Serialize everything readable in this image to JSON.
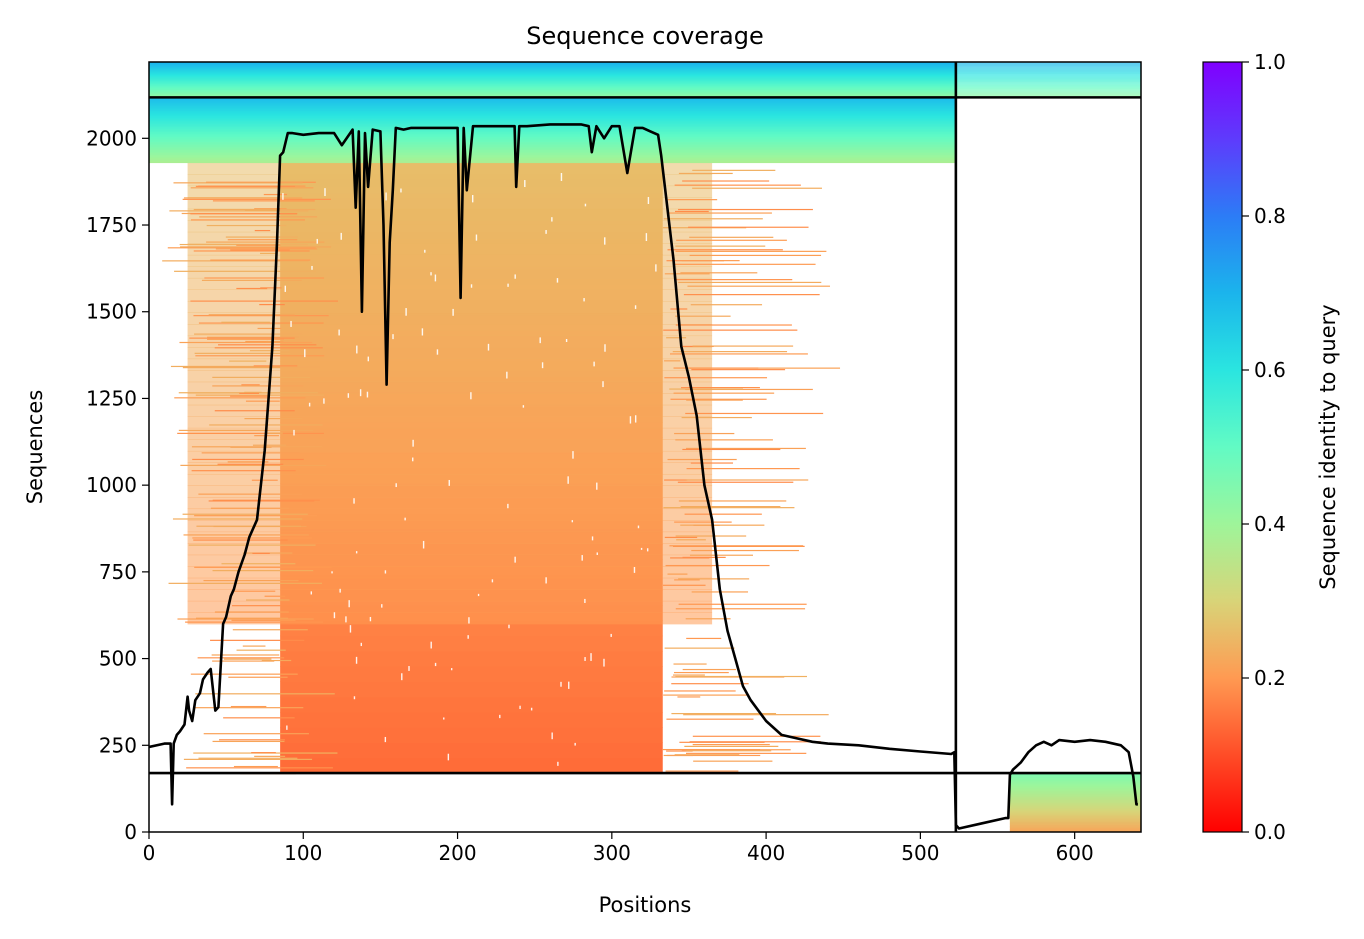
{
  "chart_data": {
    "type": "heatmap",
    "title": "Sequence coverage",
    "xlabel": "Positions",
    "ylabel": "Sequences",
    "xlim": [
      0,
      643
    ],
    "ylim": [
      0,
      2220
    ],
    "xticks": [
      0,
      100,
      200,
      300,
      400,
      500,
      600
    ],
    "yticks": [
      0,
      250,
      500,
      750,
      1000,
      1250,
      1500,
      1750,
      2000
    ],
    "grid": false,
    "chain_boundaries": {
      "x": [
        523
      ],
      "y": [
        170,
        2118
      ]
    },
    "colorbar": {
      "label": "Sequence identity to query",
      "range": [
        0.0,
        1.0
      ],
      "ticks": [
        0.0,
        0.2,
        0.4,
        0.6,
        0.8,
        1.0
      ],
      "tick_labels": [
        "0.0",
        "0.2",
        "0.4",
        "0.6",
        "0.8",
        "1.0"
      ],
      "colormap": "rainbow_r"
    },
    "coverage_blocks": [
      {
        "x0": 85,
        "x1": 333,
        "y0": 170,
        "y1": 1930,
        "identity_bottom": 0.14,
        "identity_top": 0.26
      },
      {
        "x0": 25,
        "x1": 365,
        "y0": 600,
        "y1": 1930,
        "identity_bottom": 0.2,
        "identity_top": 0.26,
        "density": "sparse"
      },
      {
        "x0": 0,
        "x1": 523,
        "y0": 1930,
        "y1": 2118,
        "identity_bottom": 0.38,
        "identity_top": 0.68
      },
      {
        "x0": 0,
        "x1": 523,
        "y0": 2118,
        "y1": 2220,
        "identity_bottom": 0.42,
        "identity_top": 0.7
      },
      {
        "x0": 523,
        "x1": 643,
        "y0": 2118,
        "y1": 2220,
        "identity_bottom": 0.42,
        "identity_top": 0.7,
        "density": "sparse"
      },
      {
        "x0": 558,
        "x1": 643,
        "y0": 0,
        "y1": 170,
        "identity_bottom": 0.22,
        "identity_top": 0.45
      }
    ],
    "coverage_line": {
      "color": "#000000",
      "x": [
        0,
        10,
        14,
        15,
        16,
        18,
        20,
        23,
        25,
        26,
        28,
        30,
        33,
        35,
        38,
        40,
        43,
        45,
        48,
        50,
        53,
        55,
        58,
        62,
        65,
        70,
        75,
        80,
        83,
        85,
        87,
        90,
        93,
        100,
        110,
        120,
        125,
        132,
        134,
        136,
        138,
        140,
        142,
        145,
        150,
        152,
        154,
        156,
        158,
        160,
        165,
        170,
        180,
        190,
        200,
        202,
        204,
        206,
        210,
        220,
        230,
        237,
        238,
        240,
        245,
        260,
        280,
        285,
        287,
        290,
        295,
        300,
        305,
        310,
        315,
        320,
        325,
        330,
        332,
        340,
        345,
        350,
        355,
        360,
        365,
        370,
        375,
        380,
        385,
        390,
        400,
        410,
        420,
        430,
        440,
        460,
        480,
        500,
        520,
        522,
        523,
        525,
        540,
        555,
        557,
        558,
        560,
        565,
        570,
        575,
        580,
        585,
        590,
        600,
        610,
        620,
        630,
        635,
        638,
        640,
        641
      ],
      "y": [
        245,
        255,
        255,
        80,
        255,
        280,
        290,
        310,
        390,
        350,
        320,
        380,
        400,
        440,
        460,
        470,
        350,
        360,
        600,
        620,
        680,
        700,
        750,
        800,
        850,
        900,
        1100,
        1400,
        1700,
        1950,
        1960,
        2015,
        2015,
        2010,
        2015,
        2015,
        1980,
        2025,
        1800,
        2020,
        1500,
        2015,
        1860,
        2025,
        2020,
        1750,
        1290,
        1700,
        1850,
        2030,
        2025,
        2030,
        2030,
        2030,
        2030,
        1540,
        2030,
        1850,
        2035,
        2035,
        2035,
        2035,
        1860,
        2035,
        2035,
        2040,
        2040,
        2035,
        1960,
        2035,
        2000,
        2035,
        2035,
        1900,
        2030,
        2030,
        2020,
        2010,
        1950,
        1650,
        1400,
        1310,
        1200,
        1000,
        900,
        700,
        580,
        500,
        420,
        380,
        320,
        280,
        270,
        260,
        255,
        250,
        240,
        232,
        225,
        230,
        20,
        10,
        25,
        40,
        40,
        165,
        180,
        200,
        230,
        250,
        260,
        250,
        265,
        260,
        265,
        260,
        250,
        230,
        160,
        80,
        80
      ]
    }
  }
}
